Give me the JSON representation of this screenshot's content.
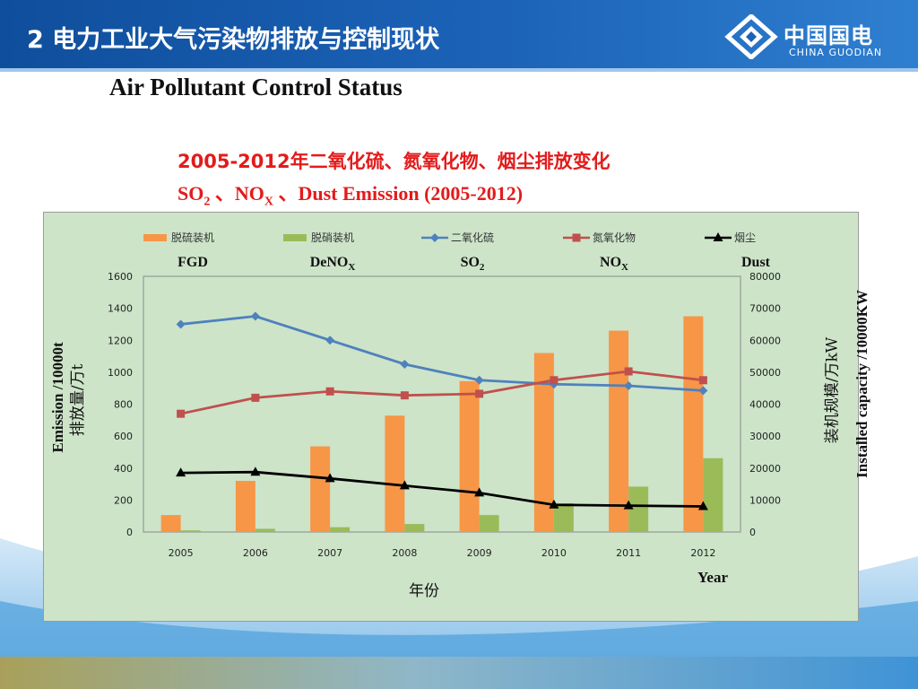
{
  "header": {
    "title": "2 电力工业大气污染物排放与控制现状",
    "logo_cn": "中国国电",
    "logo_en": "CHINA GUODIAN"
  },
  "subtitle_en": "Air Pollutant Control Status",
  "chart_title_cn": "2005-2012年二氧化硫、氮氧化物、烟尘排放变化",
  "chart_title_en": {
    "so2": "SO",
    "so2_sub": "2",
    "sep1": " 、NO",
    "nox_sub": "X",
    "rest": " 、Dust Emission  (2005-2012)"
  },
  "colors": {
    "fgd": "#f79646",
    "denox": "#9bbb59",
    "so2": "#4f81bd",
    "nox": "#c0504d",
    "dust": "#000000",
    "plot_bg": "#cde4c9",
    "title_red": "#e31b1b"
  },
  "chart_data": {
    "type": "bar",
    "title": "2005-2012年二氧化硫、氮氧化物、烟尘排放变化",
    "categories": [
      "2005",
      "2006",
      "2007",
      "2008",
      "2009",
      "2010",
      "2011",
      "2012"
    ],
    "xlabel": "年份",
    "xlabel_en": "Year",
    "ylabel_left_en": "Emission /10000t",
    "ylabel_left_cn": "排放量/万t",
    "ylabel_right_cn": "装机规模/万kW",
    "ylabel_right_en": "Installed capacity /10000KW",
    "ylim_left": [
      0,
      1600
    ],
    "ylim_right": [
      0,
      80000
    ],
    "yticks_left": [
      "0",
      "200",
      "400",
      "600",
      "800",
      "1000",
      "1200",
      "1400",
      "1600"
    ],
    "yticks_right": [
      "0",
      "10000",
      "20000",
      "30000",
      "40000",
      "50000",
      "60000",
      "70000",
      "80000"
    ],
    "legend_position": "top",
    "series": [
      {
        "name": "脱硫装机",
        "name_en": "FGD",
        "type": "bar",
        "axis": "right",
        "values": [
          5300,
          16000,
          26800,
          36400,
          47200,
          56000,
          63000,
          67500
        ]
      },
      {
        "name": "脱硝装机",
        "name_en": "DeNO",
        "name_en_sub": "X",
        "type": "bar",
        "axis": "right",
        "values": [
          500,
          1000,
          1500,
          2500,
          5300,
          9000,
          14200,
          23100
        ]
      },
      {
        "name": "二氧化硫",
        "name_en": "SO",
        "name_en_sub": "2",
        "type": "line",
        "axis": "left",
        "values": [
          1300,
          1350,
          1200,
          1050,
          950,
          925,
          915,
          885
        ]
      },
      {
        "name": "氮氧化物",
        "name_en": "NO",
        "name_en_sub": "X",
        "type": "line",
        "axis": "left",
        "values": [
          740,
          840,
          880,
          855,
          865,
          950,
          1005,
          950
        ]
      },
      {
        "name": "烟尘",
        "name_en": "Dust",
        "type": "line",
        "axis": "left",
        "values": [
          370,
          375,
          335,
          290,
          245,
          170,
          165,
          160
        ]
      }
    ]
  }
}
